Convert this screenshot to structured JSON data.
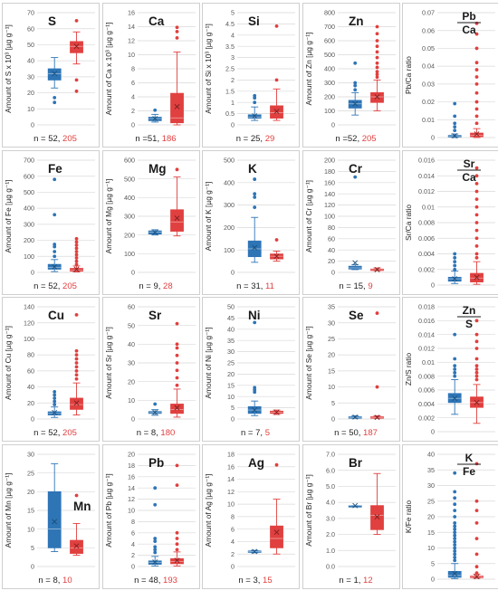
{
  "colors": {
    "blue": "#2E75B6",
    "red": "#E0403F",
    "n_blue": "#1F1F1F",
    "n_red": "#E0403F",
    "grid": "#D9D9D9",
    "axis_text": "#595959"
  },
  "chart_data": [
    {
      "id": "S",
      "type": "box",
      "title": "S",
      "ylabel": "Amount of S x 10³ [µg g⁻¹]",
      "ylim": [
        0,
        70
      ],
      "yticks": [
        0,
        10,
        20,
        30,
        40,
        50,
        60,
        70
      ],
      "grid": true,
      "n_prefix": "n = ",
      "n_blue": "52",
      "n_red": "205",
      "series": [
        {
          "group": "blue",
          "min": 23,
          "q1": 28,
          "median": 32,
          "q3": 35,
          "max": 42,
          "mean": 32,
          "outliers": [
            14,
            17
          ]
        },
        {
          "group": "red",
          "min": 38,
          "q1": 45,
          "median": 49,
          "q3": 52,
          "max": 58,
          "mean": 49,
          "outliers": [
            21,
            28,
            65
          ]
        }
      ]
    },
    {
      "id": "Ca",
      "type": "box",
      "title": "Ca",
      "ylabel": "Amount of Ca x 10³ [µg g⁻¹]",
      "ylim": [
        0,
        16
      ],
      "yticks": [
        0,
        2,
        4,
        6,
        8,
        10,
        12,
        14,
        16
      ],
      "grid": true,
      "n_prefix": "n =",
      "n_blue": "51",
      "n_red": "186",
      "series": [
        {
          "group": "blue",
          "min": 0.4,
          "q1": 0.6,
          "median": 0.9,
          "q3": 1.1,
          "max": 1.5,
          "mean": 0.9,
          "outliers": [
            2.1
          ]
        },
        {
          "group": "red",
          "min": 0,
          "q1": 0.3,
          "median": 1.0,
          "q3": 4.5,
          "max": 10.4,
          "mean": 2.6,
          "outliers": [
            12.4,
            13.3,
            13.9
          ]
        }
      ]
    },
    {
      "id": "Si",
      "type": "box",
      "title": "Si",
      "ylabel": "Amount of Si x 10³ [µg g⁻¹]",
      "ylim": [
        0,
        5
      ],
      "yticks": [
        0,
        0.5,
        1,
        1.5,
        2,
        2.5,
        3,
        3.5,
        4,
        4.5,
        5
      ],
      "grid": true,
      "n_prefix": "n = ",
      "n_blue": "25",
      "n_red": "29",
      "series": [
        {
          "group": "blue",
          "min": 0.2,
          "q1": 0.3,
          "median": 0.35,
          "q3": 0.45,
          "max": 0.8,
          "mean": 0.4,
          "outliers": [
            1.0,
            1.2,
            1.3
          ]
        },
        {
          "group": "red",
          "min": 0.2,
          "q1": 0.3,
          "median": 0.55,
          "q3": 0.85,
          "max": 1.6,
          "mean": 0.6,
          "outliers": [
            2.0,
            4.4
          ]
        }
      ]
    },
    {
      "id": "Zn",
      "type": "box",
      "title": "Zn",
      "ylabel": "Amount of Zn [µg g⁻¹]",
      "ylim": [
        0,
        800
      ],
      "yticks": [
        0,
        100,
        200,
        300,
        400,
        500,
        600,
        700,
        800
      ],
      "grid": true,
      "n_prefix": "n =",
      "n_blue": "52",
      "n_red": "205",
      "series": [
        {
          "group": "blue",
          "min": 70,
          "q1": 120,
          "median": 150,
          "q3": 175,
          "max": 230,
          "mean": 150,
          "outliers": [
            250,
            280,
            300,
            440
          ]
        },
        {
          "group": "red",
          "min": 100,
          "q1": 160,
          "median": 200,
          "q3": 230,
          "max": 320,
          "mean": 200,
          "outliers": [
            340,
            360,
            380,
            410,
            440,
            480,
            520,
            560,
            600,
            650,
            700
          ]
        }
      ]
    },
    {
      "id": "PbCa",
      "type": "box",
      "title_num": "Pb",
      "title_den": "Ca",
      "ylabel": "Pb/Ca ratio",
      "ylim": [
        0,
        0.07
      ],
      "yticks": [
        0,
        0.01,
        0.02,
        0.03,
        0.04,
        0.05,
        0.06,
        0.07
      ],
      "grid": true,
      "n_prefix": "",
      "n_blue": "",
      "n_red": "",
      "series": [
        {
          "group": "blue",
          "min": 0,
          "q1": 0.0003,
          "median": 0.0006,
          "q3": 0.0012,
          "max": 0.002,
          "mean": 0.001,
          "outliers": [
            0.004,
            0.006,
            0.008,
            0.012,
            0.019
          ]
        },
        {
          "group": "red",
          "min": 0,
          "q1": 0.0005,
          "median": 0.0012,
          "q3": 0.0025,
          "max": 0.005,
          "mean": 0.002,
          "outliers": [
            0.008,
            0.012,
            0.016,
            0.02,
            0.025,
            0.03,
            0.034,
            0.038,
            0.042,
            0.05,
            0.058,
            0.064
          ]
        }
      ]
    },
    {
      "id": "Fe",
      "type": "box",
      "title": "Fe",
      "ylabel": "Amount of Fe [µg g⁻¹]",
      "ylim": [
        0,
        700
      ],
      "yticks": [
        0,
        100,
        200,
        300,
        400,
        500,
        600,
        700
      ],
      "grid": true,
      "n_prefix": "n = ",
      "n_blue": "52",
      "n_red": "205",
      "series": [
        {
          "group": "blue",
          "min": 5,
          "q1": 20,
          "median": 30,
          "q3": 50,
          "max": 80,
          "mean": 35,
          "outliers": [
            100,
            130,
            160,
            175,
            360,
            580
          ]
        },
        {
          "group": "red",
          "min": 3,
          "q1": 8,
          "median": 15,
          "q3": 25,
          "max": 40,
          "mean": 20,
          "outliers": [
            50,
            70,
            90,
            110,
            130,
            150,
            170,
            190,
            210
          ]
        }
      ]
    },
    {
      "id": "Mg",
      "type": "box",
      "title": "Mg",
      "ylabel": "Amount of Mg [µg g⁻¹]",
      "ylim": [
        0,
        600
      ],
      "yticks": [
        0,
        100,
        200,
        300,
        400,
        500,
        600
      ],
      "grid": true,
      "n_prefix": "n = ",
      "n_blue": "9",
      "n_red": "28",
      "series": [
        {
          "group": "blue",
          "min": 200,
          "q1": 205,
          "median": 215,
          "q3": 222,
          "max": 228,
          "mean": 213,
          "outliers": []
        },
        {
          "group": "red",
          "min": 195,
          "q1": 220,
          "median": 270,
          "q3": 335,
          "max": 510,
          "mean": 290,
          "outliers": [
            550
          ]
        }
      ]
    },
    {
      "id": "K",
      "type": "box",
      "title": "K",
      "ylabel": "Amount of K [µg g⁻¹]",
      "ylim": [
        0,
        500
      ],
      "yticks": [
        0,
        100,
        200,
        300,
        400,
        500
      ],
      "grid": true,
      "n_prefix": "n = ",
      "n_blue": "31",
      "n_red": "11",
      "series": [
        {
          "group": "blue",
          "min": 45,
          "q1": 70,
          "median": 105,
          "q3": 140,
          "max": 245,
          "mean": 110,
          "outliers": [
            290,
            335,
            350,
            415
          ]
        },
        {
          "group": "red",
          "min": 50,
          "q1": 60,
          "median": 72,
          "q3": 82,
          "max": 95,
          "mean": 72,
          "outliers": [
            145
          ]
        }
      ]
    },
    {
      "id": "Cr",
      "type": "box",
      "title": "Cr",
      "ylabel": "Amount of Cr [µg g⁻¹]",
      "ylim": [
        0,
        200
      ],
      "yticks": [
        0,
        20,
        40,
        60,
        80,
        100,
        120,
        140,
        160,
        180,
        200
      ],
      "grid": true,
      "n_prefix": "n = ",
      "n_blue": "15",
      "n_red": "9",
      "series": [
        {
          "group": "blue",
          "min": 5,
          "q1": 6,
          "median": 8,
          "q3": 11,
          "max": 14,
          "mean": 17,
          "outliers": [
            170
          ]
        },
        {
          "group": "red",
          "min": 3,
          "q1": 4,
          "median": 5,
          "q3": 6,
          "max": 8,
          "mean": 5,
          "outliers": []
        }
      ]
    },
    {
      "id": "SrCa",
      "type": "box",
      "title_num": "Sr",
      "title_den": "Ca",
      "ylabel": "Sr/Ca ratio",
      "ylim": [
        0,
        0.016
      ],
      "yticks": [
        0,
        0.002,
        0.004,
        0.006,
        0.008,
        0.01,
        0.012,
        0.014,
        0.016
      ],
      "grid": true,
      "n_prefix": "",
      "n_blue": "",
      "n_red": "",
      "series": [
        {
          "group": "blue",
          "min": 0.0002,
          "q1": 0.0005,
          "median": 0.0008,
          "q3": 0.001,
          "max": 0.0018,
          "mean": 0.0008,
          "outliers": [
            0.002,
            0.0025,
            0.003,
            0.0035,
            0.004
          ]
        },
        {
          "group": "red",
          "min": 0.0001,
          "q1": 0.0004,
          "median": 0.0009,
          "q3": 0.0015,
          "max": 0.003,
          "mean": 0.001,
          "outliers": [
            0.0035,
            0.004,
            0.005,
            0.006,
            0.007,
            0.008,
            0.009,
            0.01,
            0.011,
            0.012,
            0.013,
            0.014,
            0.015
          ]
        }
      ]
    },
    {
      "id": "Cu",
      "type": "box",
      "title": "Cu",
      "ylabel": "Amount of Cu [µg g⁻¹]",
      "ylim": [
        0,
        140
      ],
      "yticks": [
        0,
        20,
        40,
        60,
        80,
        100,
        120,
        140
      ],
      "grid": true,
      "n_prefix": "n = ",
      "n_blue": "52",
      "n_red": "205",
      "series": [
        {
          "group": "blue",
          "min": 2,
          "q1": 5,
          "median": 7,
          "q3": 9,
          "max": 15,
          "mean": 8,
          "outliers": [
            18,
            22,
            26,
            30,
            34
          ]
        },
        {
          "group": "red",
          "min": 5,
          "q1": 12,
          "median": 18,
          "q3": 26,
          "max": 45,
          "mean": 20,
          "outliers": [
            50,
            55,
            60,
            65,
            70,
            75,
            80,
            85,
            130
          ]
        }
      ]
    },
    {
      "id": "Sr",
      "type": "box",
      "title": "Sr",
      "ylabel": "Amount of Sr [µg g⁻¹]",
      "ylim": [
        0,
        60
      ],
      "yticks": [
        0,
        10,
        20,
        30,
        40,
        50,
        60
      ],
      "grid": true,
      "n_prefix": "n = ",
      "n_blue": "8",
      "n_red": "180",
      "series": [
        {
          "group": "blue",
          "min": 2,
          "q1": 3,
          "median": 3.5,
          "q3": 4,
          "max": 5,
          "mean": 3.5,
          "outliers": [
            8
          ]
        },
        {
          "group": "red",
          "min": 1,
          "q1": 3,
          "median": 5,
          "q3": 8,
          "max": 16,
          "mean": 6,
          "outliers": [
            18,
            22,
            26,
            30,
            34,
            38,
            40,
            51
          ]
        }
      ]
    },
    {
      "id": "Ni",
      "type": "box",
      "title": "Ni",
      "ylabel": "Amount of Ni [µg g⁻¹]",
      "ylim": [
        0,
        50
      ],
      "yticks": [
        0,
        5,
        10,
        15,
        20,
        25,
        30,
        35,
        40,
        45,
        50
      ],
      "grid": true,
      "n_prefix": "n = ",
      "n_blue": "7",
      "n_red": "5",
      "series": [
        {
          "group": "blue",
          "min": 1.5,
          "q1": 2.5,
          "median": 4,
          "q3": 5.5,
          "max": 8,
          "mean": 4,
          "outliers": [
            12,
            13,
            14,
            43
          ]
        },
        {
          "group": "red",
          "min": 2,
          "q1": 2.5,
          "median": 3,
          "q3": 3.5,
          "max": 4,
          "mean": 3,
          "outliers": []
        }
      ]
    },
    {
      "id": "Se",
      "type": "box",
      "title": "Se",
      "ylabel": "Amount of Se [µg g⁻¹]",
      "ylim": [
        0,
        35
      ],
      "yticks": [
        0,
        5,
        10,
        15,
        20,
        25,
        30,
        35
      ],
      "grid": true,
      "n_prefix": "n = ",
      "n_blue": "50",
      "n_red": "187",
      "series": [
        {
          "group": "blue",
          "min": 0.2,
          "q1": 0.4,
          "median": 0.5,
          "q3": 0.7,
          "max": 1.0,
          "mean": 0.6,
          "outliers": []
        },
        {
          "group": "red",
          "min": 0.2,
          "q1": 0.3,
          "median": 0.5,
          "q3": 0.7,
          "max": 1.0,
          "mean": 0.5,
          "outliers": [
            10,
            33
          ]
        }
      ]
    },
    {
      "id": "ZnS",
      "type": "box",
      "title_num": "Zn",
      "title_den": "S",
      "ylabel": "Zn/S ratio",
      "ylim": [
        0,
        0.018
      ],
      "yticks": [
        0,
        0.002,
        0.004,
        0.006,
        0.008,
        0.01,
        0.012,
        0.014,
        0.016,
        0.018
      ],
      "grid": true,
      "n_prefix": "",
      "n_blue": "",
      "n_red": "",
      "series": [
        {
          "group": "blue",
          "min": 0.0025,
          "q1": 0.0042,
          "median": 0.0048,
          "q3": 0.0055,
          "max": 0.0075,
          "mean": 0.0048,
          "outliers": [
            0.008,
            0.0085,
            0.009,
            0.0095,
            0.0105,
            0.014
          ]
        },
        {
          "group": "red",
          "min": 0.0012,
          "q1": 0.0035,
          "median": 0.0042,
          "q3": 0.005,
          "max": 0.0068,
          "mean": 0.0042,
          "outliers": [
            0.0075,
            0.008,
            0.0085,
            0.009,
            0.0095,
            0.0105,
            0.012,
            0.013,
            0.014,
            0.016
          ]
        }
      ]
    },
    {
      "id": "Mn",
      "type": "box",
      "title": "Mn",
      "ylabel": "Amount of Mn [µg g⁻¹]",
      "ylim": [
        0,
        30
      ],
      "yticks": [
        0,
        5,
        10,
        15,
        20,
        25,
        30
      ],
      "grid": true,
      "n_prefix": "n = ",
      "n_blue": "8",
      "n_red": "10",
      "series": [
        {
          "group": "blue",
          "min": 4,
          "q1": 5,
          "median": 10,
          "q3": 20,
          "max": 27.5,
          "mean": 12,
          "outliers": []
        },
        {
          "group": "red",
          "min": 3,
          "q1": 3.5,
          "median": 5,
          "q3": 7,
          "max": 11.5,
          "mean": 5.5,
          "outliers": [
            19
          ]
        }
      ]
    },
    {
      "id": "Pb",
      "type": "box",
      "title": "Pb",
      "ylabel": "Amount of Pb [µg g⁻¹]",
      "ylim": [
        0,
        20
      ],
      "yticks": [
        0,
        2,
        4,
        6,
        8,
        10,
        12,
        14,
        16,
        18,
        20
      ],
      "grid": true,
      "n_prefix": "n = ",
      "n_blue": "48",
      "n_red": "193",
      "series": [
        {
          "group": "blue",
          "min": 0.1,
          "q1": 0.4,
          "median": 0.7,
          "q3": 1.0,
          "max": 1.8,
          "mean": 0.8,
          "outliers": [
            2.5,
            3,
            3.5,
            4.5,
            5,
            11,
            14
          ]
        },
        {
          "group": "red",
          "min": 0.1,
          "q1": 0.5,
          "median": 0.9,
          "q3": 1.4,
          "max": 2.6,
          "mean": 1.1,
          "outliers": [
            3,
            4,
            5,
            6,
            14.5,
            18
          ]
        }
      ]
    },
    {
      "id": "Ag",
      "type": "box",
      "title": "Ag",
      "ylabel": "Amount of Ag [µg g⁻¹]",
      "ylim": [
        0,
        18
      ],
      "yticks": [
        0,
        2,
        4,
        6,
        8,
        10,
        12,
        14,
        16,
        18
      ],
      "grid": true,
      "n_prefix": "n = ",
      "n_blue": "3",
      "n_red": "15",
      "series": [
        {
          "group": "blue",
          "min": 2.2,
          "q1": 2.3,
          "median": 2.4,
          "q3": 2.5,
          "max": 2.6,
          "mean": 2.4,
          "outliers": []
        },
        {
          "group": "red",
          "min": 2,
          "q1": 3,
          "median": 4.5,
          "q3": 6.5,
          "max": 10.8,
          "mean": 5.5,
          "outliers": [
            16.3
          ]
        }
      ]
    },
    {
      "id": "Br",
      "type": "box",
      "title": "Br",
      "ylabel": "Amount of Br [µg g⁻¹]",
      "ylim": [
        0,
        7
      ],
      "yticks": [
        "0.0",
        "1.0",
        "2.0",
        "3.0",
        "4.0",
        "5.0",
        "6.0",
        "7.0"
      ],
      "grid": true,
      "n_prefix": "n = ",
      "n_blue": "1",
      "n_red": "12",
      "series": [
        {
          "group": "blue",
          "min": 3.8,
          "q1": 3.8,
          "median": 3.8,
          "q3": 3.8,
          "max": 3.8,
          "mean": 3.8,
          "outliers": []
        },
        {
          "group": "red",
          "min": 2.0,
          "q1": 2.3,
          "median": 3.2,
          "q3": 3.8,
          "max": 5.8,
          "mean": 3.1,
          "outliers": []
        }
      ]
    },
    {
      "id": "KFe",
      "type": "box",
      "title_num": "K",
      "title_den": "Fe",
      "ylabel": "K/Fe ratio",
      "ylim": [
        0,
        40
      ],
      "yticks": [
        0,
        5,
        10,
        15,
        20,
        25,
        30,
        35,
        40
      ],
      "grid": true,
      "n_prefix": "",
      "n_blue": "",
      "n_red": "",
      "series": [
        {
          "group": "blue",
          "min": 0.2,
          "q1": 0.6,
          "median": 1.2,
          "q3": 2.5,
          "max": 5,
          "mean": 1.8,
          "outliers": [
            6,
            7,
            8,
            9,
            10,
            11,
            12,
            13,
            14,
            15,
            16,
            17,
            18,
            20,
            22,
            24,
            26,
            28,
            34
          ]
        },
        {
          "group": "red",
          "min": 0.3,
          "q1": 0.5,
          "median": 0.8,
          "q3": 1.0,
          "max": 1.6,
          "mean": 0.8,
          "outliers": [
            2,
            4,
            8,
            13,
            18,
            22,
            25,
            37
          ]
        }
      ]
    }
  ]
}
